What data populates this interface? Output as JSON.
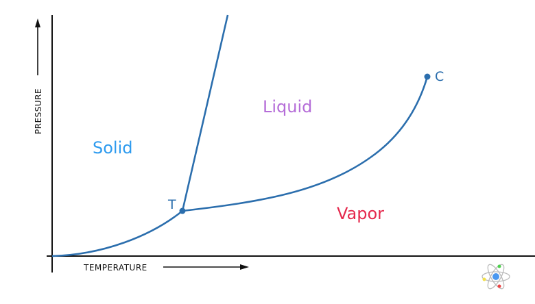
{
  "axes": {
    "x_label": "TEMPERATURE",
    "y_label": "PRESSURE"
  },
  "regions": [
    {
      "label": "Solid",
      "color": "#2e9bef"
    },
    {
      "label": "Liquid",
      "color": "#b56dd8"
    },
    {
      "label": "Vapor",
      "color": "#e5294d"
    }
  ],
  "points": {
    "triple": "T",
    "critical": "C"
  },
  "colors": {
    "curve": "#2b6ead",
    "axis": "#111111"
  },
  "logo_icon": "atom-icon"
}
